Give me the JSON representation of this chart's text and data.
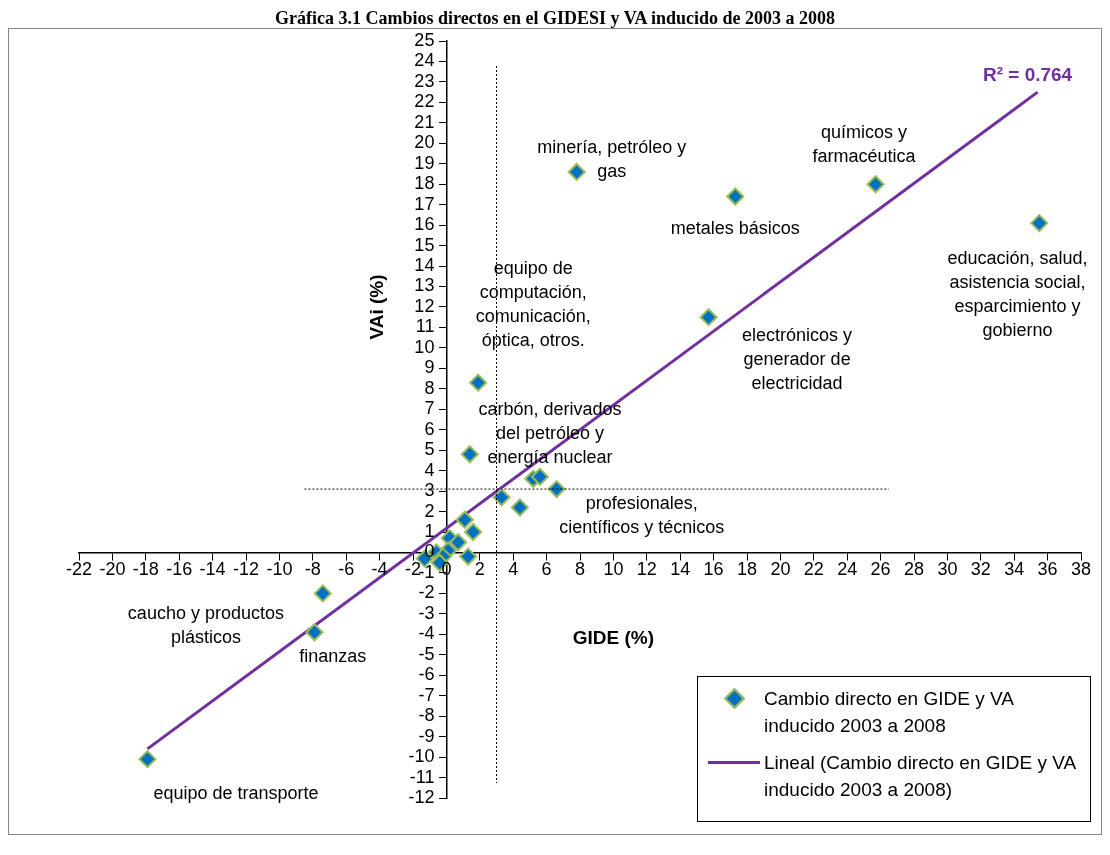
{
  "chart_data": {
    "type": "scatter",
    "title": "Gráfica 3.1 Cambios directos en el GIDESI y VA inducido de 2003 a 2008",
    "xlabel": "GIDE (%)",
    "ylabel": "VAi (%)",
    "series": [
      {
        "name": "Cambio directo en GIDE y VA inducido 2003 a 2008",
        "type": "scatter",
        "color": "#0070c0",
        "marker": "diamond",
        "x": [
          -17.9,
          -7.9,
          -7.4,
          35.5,
          25.7,
          17.3,
          7.8,
          15.7,
          1.9,
          1.4,
          6.6,
          5.2,
          5.6,
          3.3,
          4.4,
          1.1,
          1.6,
          0.2,
          0.7,
          0.1,
          -0.6,
          -0.2,
          -1.3,
          1.3,
          -0.4
        ],
        "values": [
          -10.1,
          -3.9,
          -2.0,
          16.1,
          18.0,
          17.4,
          18.6,
          11.5,
          8.3,
          4.8,
          3.1,
          3.6,
          3.7,
          2.7,
          2.2,
          1.6,
          1.0,
          0.7,
          0.5,
          0.1,
          0.0,
          -0.2,
          -0.3,
          -0.2,
          -0.5
        ]
      },
      {
        "name": "Lineal (Cambio directo en GIDE y VA inducido 2003 a 2008)",
        "type": "line",
        "color": "#7030a0",
        "marker": "none",
        "x": [
          -17.9,
          35.4
        ],
        "values": [
          -9.6,
          22.5
        ]
      }
    ],
    "xlim": [
      -22,
      38
    ],
    "ylim": [
      -12,
      25
    ],
    "xticks": [
      -22,
      -20,
      -18,
      -16,
      -14,
      -12,
      -10,
      -8,
      -6,
      -4,
      -2,
      0,
      2,
      4,
      6,
      8,
      10,
      12,
      14,
      16,
      18,
      20,
      22,
      24,
      26,
      28,
      30,
      32,
      34,
      36,
      38
    ],
    "yticks": [
      -12,
      -11,
      -10,
      -9,
      -8,
      -7,
      -6,
      -5,
      -4,
      -3,
      -2,
      -1,
      0,
      1,
      2,
      3,
      4,
      5,
      6,
      7,
      8,
      9,
      10,
      11,
      12,
      13,
      14,
      15,
      16,
      17,
      18,
      19,
      20,
      21,
      22,
      23,
      24,
      25
    ],
    "ref_lines": [
      {
        "axis": "x",
        "value": 3,
        "line_style": "dotted",
        "color": "#000000"
      },
      {
        "axis": "y",
        "value": 3.1,
        "line_style": "dotted",
        "color": "#000000"
      }
    ],
    "annotations": [
      "minería, petróleo y\ngas",
      "químicos y\nfarmacéutica",
      "metales básicos",
      "educación, salud,\nasistencia social,\nesparcimiento y\ngobierno",
      "equipo de\ncomputación,\ncomunicación,\nóptica, otros.",
      "electrónicos y\ngenerador de\nelectricidad",
      "carbón, derivados\ndel petróleo y\nenergía nuclear",
      "profesionales,\ncientíficos y técnicos",
      "caucho y productos\nplásticos",
      "finanzas",
      "equipo de transporte",
      "R² = 0.764"
    ],
    "grid": false,
    "legend": "bottom right"
  }
}
